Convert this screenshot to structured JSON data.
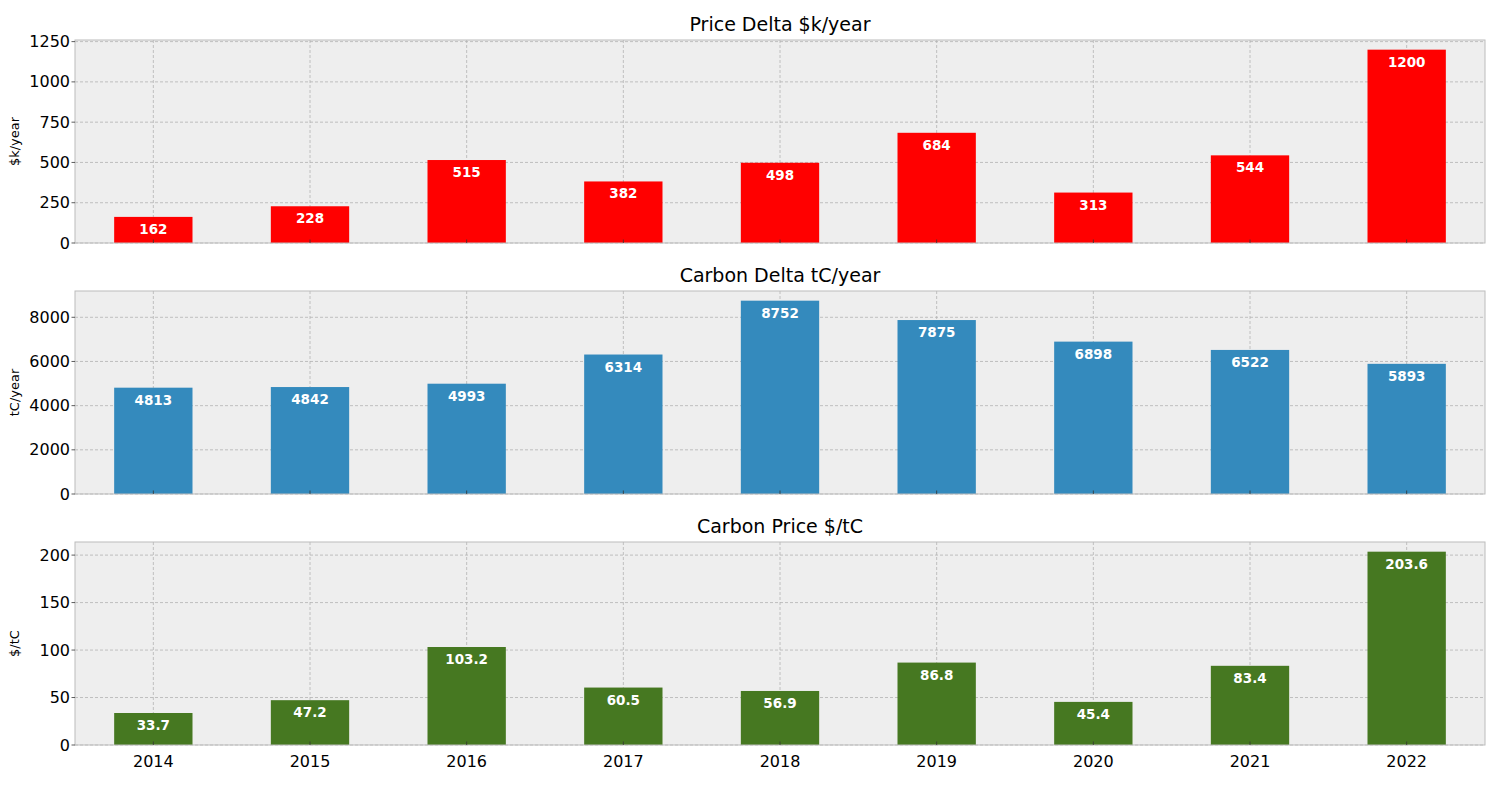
{
  "chart_data": [
    {
      "type": "bar",
      "title": "Price Delta $k/year",
      "y_label": "$k/year",
      "categories": [
        "2014",
        "2015",
        "2016",
        "2017",
        "2018",
        "2019",
        "2020",
        "2021",
        "2022"
      ],
      "values": [
        162,
        228,
        515,
        382,
        498,
        684,
        313,
        544,
        1200
      ],
      "color": "#ff0000",
      "ylim": [
        0,
        1260
      ],
      "yticks": [
        0,
        250,
        500,
        750,
        1000,
        1250
      ],
      "grid": true,
      "data_labels": true,
      "tick_labels": "y"
    },
    {
      "type": "bar",
      "title": "Carbon Delta tC/year",
      "y_label": "tC/year",
      "categories": [
        "2014",
        "2015",
        "2016",
        "2017",
        "2018",
        "2019",
        "2020",
        "2021",
        "2022"
      ],
      "values": [
        4813,
        4842,
        4993,
        6314,
        8752,
        7875,
        6898,
        6522,
        5893
      ],
      "color": "#348abd",
      "ylim": [
        0,
        9190
      ],
      "yticks": [
        0,
        2000,
        4000,
        6000,
        8000
      ],
      "grid": true,
      "data_labels": true,
      "tick_labels": "y"
    },
    {
      "type": "bar",
      "title": "Carbon Price $/tC",
      "y_label": "$/tC",
      "categories": [
        "2014",
        "2015",
        "2016",
        "2017",
        "2018",
        "2019",
        "2020",
        "2021",
        "2022"
      ],
      "values": [
        33.7,
        47.2,
        103.2,
        60.5,
        56.9,
        86.8,
        45.4,
        83.4,
        203.6
      ],
      "color": "#467821",
      "ylim": [
        0,
        213.8
      ],
      "yticks": [
        0,
        50,
        100,
        150,
        200
      ],
      "grid": true,
      "data_labels": true,
      "tick_labels": true
    }
  ]
}
